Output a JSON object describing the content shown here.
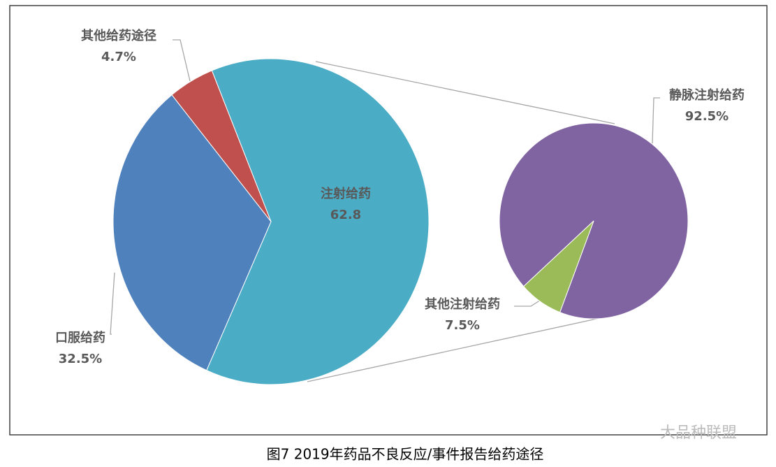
{
  "chart_data": [
    {
      "type": "pie",
      "categories": [
        "注射给药",
        "口服给药",
        "其他给药途径"
      ],
      "values": [
        62.8,
        32.5,
        4.7
      ],
      "value_labels": [
        "62.8",
        "32.5%",
        "4.7%"
      ],
      "colors": [
        "#4bacc6",
        "#4f81bd",
        "#c0504d"
      ]
    },
    {
      "type": "pie",
      "categories": [
        "静脉注射给药",
        "其他注射给药"
      ],
      "values": [
        92.5,
        7.5
      ],
      "value_labels": [
        "92.5%",
        "7.5%"
      ],
      "colors": [
        "#8064a2",
        "#9bbb59"
      ]
    }
  ],
  "caption": "图7 2019年药品不良反应/事件报告给药途径",
  "watermark": "大品种联盟"
}
